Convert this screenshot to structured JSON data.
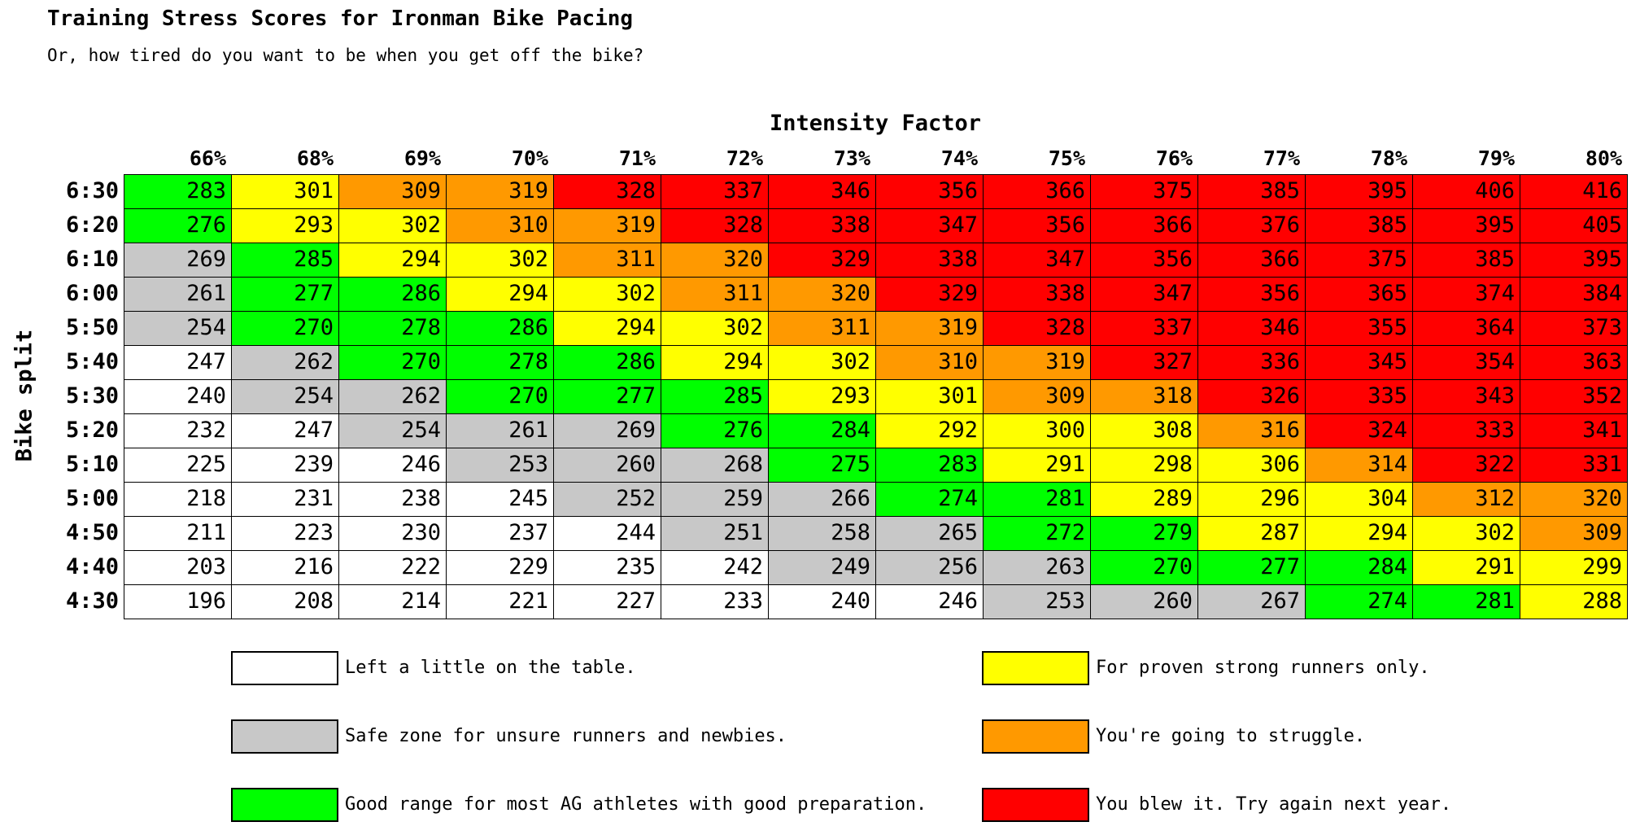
{
  "title": "Training Stress Scores for Ironman Bike Pacing",
  "subtitle": "Or, how tired do you want to be when you get off the bike?",
  "colors": {
    "white": "#ffffff",
    "gray": "#c8c8c8",
    "green": "#00ff00",
    "yellow": "#ffff00",
    "orange": "#ff9900",
    "red": "#ff0000"
  },
  "chart_data": {
    "type": "heatmap",
    "xlabel": "Intensity Factor",
    "ylabel": "Bike split",
    "columns": [
      "66%",
      "68%",
      "69%",
      "70%",
      "71%",
      "72%",
      "73%",
      "74%",
      "75%",
      "76%",
      "77%",
      "78%",
      "79%",
      "80%"
    ],
    "rows": [
      "6:30",
      "6:20",
      "6:10",
      "6:00",
      "5:50",
      "5:40",
      "5:30",
      "5:20",
      "5:10",
      "5:00",
      "4:50",
      "4:40",
      "4:30"
    ],
    "values": [
      [
        283,
        301,
        309,
        319,
        328,
        337,
        346,
        356,
        366,
        375,
        385,
        395,
        406,
        416
      ],
      [
        276,
        293,
        302,
        310,
        319,
        328,
        338,
        347,
        356,
        366,
        376,
        385,
        395,
        405
      ],
      [
        269,
        285,
        294,
        302,
        311,
        320,
        329,
        338,
        347,
        356,
        366,
        375,
        385,
        395
      ],
      [
        261,
        277,
        286,
        294,
        302,
        311,
        320,
        329,
        338,
        347,
        356,
        365,
        374,
        384
      ],
      [
        254,
        270,
        278,
        286,
        294,
        302,
        311,
        319,
        328,
        337,
        346,
        355,
        364,
        373
      ],
      [
        247,
        262,
        270,
        278,
        286,
        294,
        302,
        310,
        319,
        327,
        336,
        345,
        354,
        363
      ],
      [
        240,
        254,
        262,
        270,
        277,
        285,
        293,
        301,
        309,
        318,
        326,
        335,
        343,
        352
      ],
      [
        232,
        247,
        254,
        261,
        269,
        276,
        284,
        292,
        300,
        308,
        316,
        324,
        333,
        341
      ],
      [
        225,
        239,
        246,
        253,
        260,
        268,
        275,
        283,
        291,
        298,
        306,
        314,
        322,
        331
      ],
      [
        218,
        231,
        238,
        245,
        252,
        259,
        266,
        274,
        281,
        289,
        296,
        304,
        312,
        320
      ],
      [
        211,
        223,
        230,
        237,
        244,
        251,
        258,
        265,
        272,
        279,
        287,
        294,
        302,
        309
      ],
      [
        203,
        216,
        222,
        229,
        235,
        242,
        249,
        256,
        263,
        270,
        277,
        284,
        291,
        299
      ],
      [
        196,
        208,
        214,
        221,
        227,
        233,
        240,
        246,
        253,
        260,
        267,
        274,
        281,
        288
      ]
    ],
    "zones": [
      [
        "green",
        "yellow",
        "orange",
        "orange",
        "red",
        "red",
        "red",
        "red",
        "red",
        "red",
        "red",
        "red",
        "red",
        "red"
      ],
      [
        "green",
        "yellow",
        "yellow",
        "orange",
        "orange",
        "red",
        "red",
        "red",
        "red",
        "red",
        "red",
        "red",
        "red",
        "red"
      ],
      [
        "gray",
        "green",
        "yellow",
        "yellow",
        "orange",
        "orange",
        "red",
        "red",
        "red",
        "red",
        "red",
        "red",
        "red",
        "red"
      ],
      [
        "gray",
        "green",
        "green",
        "yellow",
        "yellow",
        "orange",
        "orange",
        "red",
        "red",
        "red",
        "red",
        "red",
        "red",
        "red"
      ],
      [
        "gray",
        "green",
        "green",
        "green",
        "yellow",
        "yellow",
        "orange",
        "orange",
        "red",
        "red",
        "red",
        "red",
        "red",
        "red"
      ],
      [
        "white",
        "gray",
        "green",
        "green",
        "green",
        "yellow",
        "yellow",
        "orange",
        "orange",
        "red",
        "red",
        "red",
        "red",
        "red"
      ],
      [
        "white",
        "gray",
        "gray",
        "green",
        "green",
        "green",
        "yellow",
        "yellow",
        "orange",
        "orange",
        "red",
        "red",
        "red",
        "red"
      ],
      [
        "white",
        "white",
        "gray",
        "gray",
        "gray",
        "green",
        "green",
        "yellow",
        "yellow",
        "yellow",
        "orange",
        "red",
        "red",
        "red"
      ],
      [
        "white",
        "white",
        "white",
        "gray",
        "gray",
        "gray",
        "green",
        "green",
        "yellow",
        "yellow",
        "yellow",
        "orange",
        "red",
        "red"
      ],
      [
        "white",
        "white",
        "white",
        "white",
        "gray",
        "gray",
        "gray",
        "green",
        "green",
        "yellow",
        "yellow",
        "yellow",
        "orange",
        "orange"
      ],
      [
        "white",
        "white",
        "white",
        "white",
        "white",
        "gray",
        "gray",
        "gray",
        "green",
        "green",
        "yellow",
        "yellow",
        "yellow",
        "orange"
      ],
      [
        "white",
        "white",
        "white",
        "white",
        "white",
        "white",
        "gray",
        "gray",
        "gray",
        "green",
        "green",
        "green",
        "yellow",
        "yellow"
      ],
      [
        "white",
        "white",
        "white",
        "white",
        "white",
        "white",
        "white",
        "white",
        "gray",
        "gray",
        "gray",
        "green",
        "green",
        "yellow"
      ]
    ]
  },
  "legend": {
    "left": [
      {
        "zone": "white",
        "label": "Left a little on the table."
      },
      {
        "zone": "gray",
        "label": "Safe zone for unsure runners and newbies."
      },
      {
        "zone": "green",
        "label": "Good range for most AG athletes with good preparation."
      }
    ],
    "right": [
      {
        "zone": "yellow",
        "label": "For proven strong runners only."
      },
      {
        "zone": "orange",
        "label": "You're going to struggle."
      },
      {
        "zone": "red",
        "label": "You blew it. Try again next year."
      }
    ]
  }
}
